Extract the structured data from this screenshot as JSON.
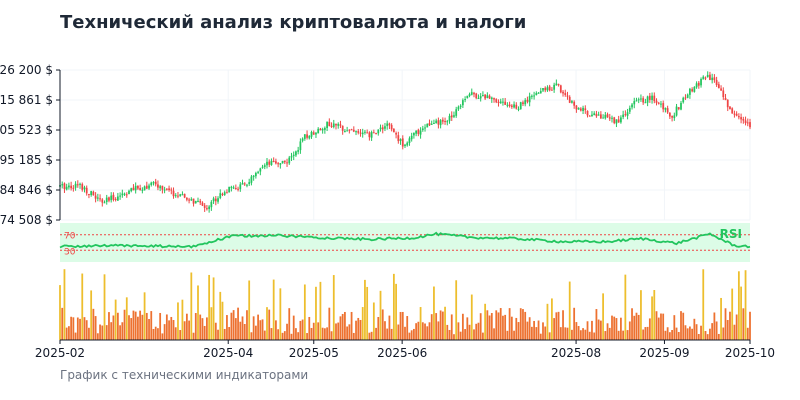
{
  "header": {
    "title": "Технический анализ криптовалюта и налоги"
  },
  "footer": {
    "caption": "График с техническими индикаторами"
  },
  "colors": {
    "up": "#22c55e",
    "down": "#ef4444",
    "rsi_line": "#22c55e",
    "rsi_band": "#dcfce7",
    "rsi_levels": "#ef4444",
    "volume_low": "#ea580c",
    "volume_high": "#eab308"
  },
  "chart_data": {
    "type": "candlestick",
    "title": "Технический анализ криптовалюта и налоги",
    "subtitle": "",
    "caption": "График с техническими индикаторами",
    "x_ticks": [
      "2025-02",
      "2025-04",
      "2025-05",
      "2025-06",
      "2025-08",
      "2025-09",
      "2025-10"
    ],
    "y_ticks": [
      "74 508 $",
      "84 846 $",
      "95 185 $",
      "105 523 $",
      "115 861 $",
      "126 200 $"
    ],
    "ylim": [
      74508,
      126200
    ],
    "grid": true,
    "price_anchors": [
      {
        "date": "2025-02-01",
        "close": 86000
      },
      {
        "date": "2025-02-10",
        "close": 86500
      },
      {
        "date": "2025-02-20",
        "close": 80500
      },
      {
        "date": "2025-03-05",
        "close": 84800
      },
      {
        "date": "2025-03-15",
        "close": 86800
      },
      {
        "date": "2025-03-25",
        "close": 83200
      },
      {
        "date": "2025-04-08",
        "close": 79000
      },
      {
        "date": "2025-04-15",
        "close": 84200
      },
      {
        "date": "2025-04-25",
        "close": 86500
      },
      {
        "date": "2025-05-05",
        "close": 93500
      },
      {
        "date": "2025-05-15",
        "close": 95000
      },
      {
        "date": "2025-05-22",
        "close": 103000
      },
      {
        "date": "2025-06-01",
        "close": 107500
      },
      {
        "date": "2025-06-10",
        "close": 106000
      },
      {
        "date": "2025-06-20",
        "close": 103500
      },
      {
        "date": "2025-06-28",
        "close": 107500
      },
      {
        "date": "2025-07-05",
        "close": 100500
      },
      {
        "date": "2025-07-15",
        "close": 107000
      },
      {
        "date": "2025-07-25",
        "close": 108500
      },
      {
        "date": "2025-08-03",
        "close": 118000
      },
      {
        "date": "2025-08-15",
        "close": 116500
      },
      {
        "date": "2025-08-25",
        "close": 113000
      },
      {
        "date": "2025-09-05",
        "close": 119000
      },
      {
        "date": "2025-09-12",
        "close": 121000
      },
      {
        "date": "2025-09-22",
        "close": 112500
      },
      {
        "date": "2025-10-01",
        "close": 110500
      },
      {
        "date": "2025-10-10",
        "close": 108500
      },
      {
        "date": "2025-10-18",
        "close": 115500
      },
      {
        "date": "2025-10-25",
        "close": 116500
      },
      {
        "date": "2025-11-03",
        "close": 110500
      },
      {
        "date": "2025-11-10",
        "close": 118000
      },
      {
        "date": "2025-11-18",
        "close": 124000
      },
      {
        "date": "2025-11-24",
        "close": 121000
      },
      {
        "date": "2025-11-27",
        "close": 115000
      },
      {
        "date": "2025-12-02",
        "close": 110000
      },
      {
        "date": "2025-12-08",
        "close": 107500
      }
    ],
    "rsi": {
      "label": "RSI",
      "levels": [
        70,
        30
      ],
      "level_labels": [
        "70",
        "30"
      ],
      "anchors": [
        {
          "date": "2025-02-01",
          "value": 40
        },
        {
          "date": "2025-03-01",
          "value": 42
        },
        {
          "date": "2025-04-01",
          "value": 39
        },
        {
          "date": "2025-04-20",
          "value": 67
        },
        {
          "date": "2025-05-10",
          "value": 68
        },
        {
          "date": "2025-06-01",
          "value": 62
        },
        {
          "date": "2025-06-20",
          "value": 58
        },
        {
          "date": "2025-07-10",
          "value": 62
        },
        {
          "date": "2025-07-20",
          "value": 72
        },
        {
          "date": "2025-08-05",
          "value": 63
        },
        {
          "date": "2025-08-25",
          "value": 60
        },
        {
          "date": "2025-09-15",
          "value": 52
        },
        {
          "date": "2025-10-05",
          "value": 52
        },
        {
          "date": "2025-10-20",
          "value": 60
        },
        {
          "date": "2025-11-05",
          "value": 48
        },
        {
          "date": "2025-11-20",
          "value": 72
        },
        {
          "date": "2025-12-01",
          "value": 42
        },
        {
          "date": "2025-12-08",
          "value": 40
        }
      ]
    },
    "volume": {
      "min": 1,
      "max": 10
    }
  }
}
